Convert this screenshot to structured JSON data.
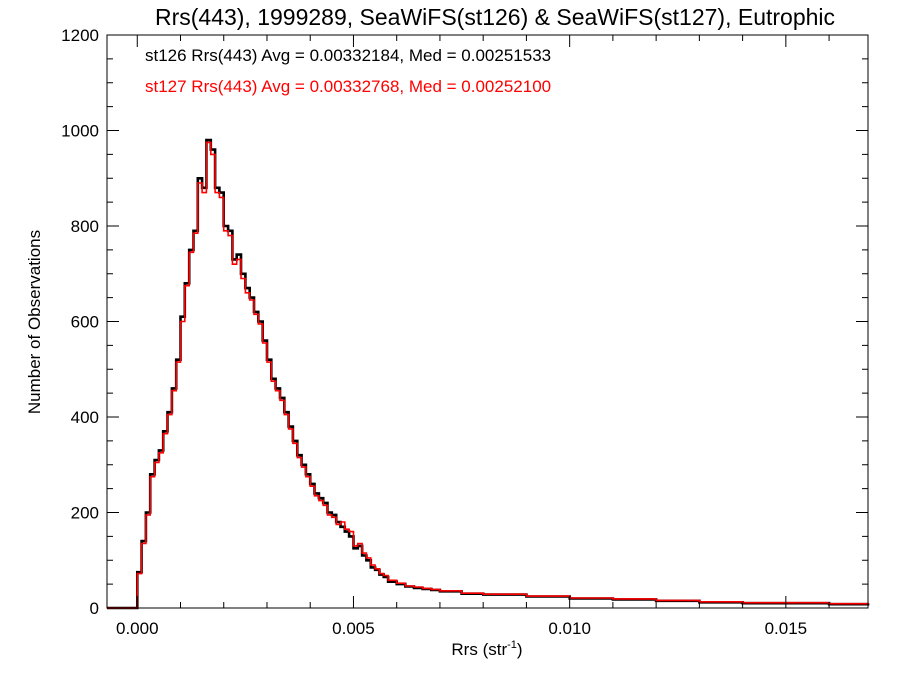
{
  "chart_data": {
    "type": "histogram-step",
    "title": "Rrs(443), 1999289, SeaWiFS(st126) & SeaWiFS(st127), Eutrophic",
    "xlabel_main": "Rrs (str",
    "xlabel_sup": "-1",
    "xlabel_close": ")",
    "ylabel": "Number of Observations",
    "xlim": [
      -0.0007,
      0.0169
    ],
    "ylim": [
      0,
      1200
    ],
    "x_ticks": [
      0.0,
      0.005,
      0.01,
      0.015
    ],
    "x_tick_labels": [
      "0.000",
      "0.005",
      "0.010",
      "0.015"
    ],
    "y_ticks": [
      0,
      200,
      400,
      600,
      800,
      1000,
      1200
    ],
    "y_tick_labels": [
      "0",
      "200",
      "400",
      "600",
      "800",
      "1000",
      "1200"
    ],
    "grid": false,
    "series": [
      {
        "name": "st126",
        "color": "#000000",
        "stats_text": "st126 Rrs(443) Avg = 0.00332184, Med = 0.00251533",
        "x": [
          -0.0007,
          0.0,
          0.0001,
          0.0002,
          0.0003,
          0.0004,
          0.0005,
          0.0006,
          0.0007,
          0.0008,
          0.0009,
          0.001,
          0.0011,
          0.0012,
          0.0013,
          0.0014,
          0.0015,
          0.0016,
          0.0017,
          0.0018,
          0.0019,
          0.002,
          0.0021,
          0.0022,
          0.0023,
          0.0024,
          0.0025,
          0.0026,
          0.0027,
          0.0028,
          0.0029,
          0.003,
          0.0031,
          0.0032,
          0.0033,
          0.0034,
          0.0035,
          0.0036,
          0.0037,
          0.0038,
          0.0039,
          0.004,
          0.0041,
          0.0042,
          0.0043,
          0.0044,
          0.0045,
          0.0046,
          0.0047,
          0.0048,
          0.0049,
          0.005,
          0.0051,
          0.0052,
          0.0053,
          0.0054,
          0.0055,
          0.0056,
          0.0057,
          0.0058,
          0.006,
          0.0062,
          0.0064,
          0.0066,
          0.0068,
          0.007,
          0.0075,
          0.008,
          0.009,
          0.01,
          0.011,
          0.012,
          0.013,
          0.014,
          0.015,
          0.016,
          0.0169
        ],
        "y": [
          0,
          75,
          140,
          200,
          280,
          310,
          330,
          370,
          410,
          460,
          520,
          610,
          680,
          750,
          790,
          900,
          880,
          980,
          960,
          880,
          870,
          800,
          790,
          730,
          740,
          700,
          670,
          650,
          620,
          600,
          560,
          520,
          480,
          460,
          440,
          410,
          380,
          350,
          320,
          300,
          280,
          260,
          240,
          230,
          220,
          200,
          195,
          180,
          170,
          160,
          150,
          125,
          130,
          110,
          100,
          85,
          80,
          70,
          65,
          55,
          50,
          45,
          42,
          40,
          38,
          35,
          30,
          28,
          24,
          20,
          18,
          15,
          12,
          10,
          10,
          8,
          10
        ]
      },
      {
        "name": "st127",
        "color": "#ff0000",
        "stats_text": "st127 Rrs(443) Avg = 0.00332768, Med = 0.00252100",
        "x": [
          -0.0007,
          0.0,
          0.0001,
          0.0002,
          0.0003,
          0.0004,
          0.0005,
          0.0006,
          0.0007,
          0.0008,
          0.0009,
          0.001,
          0.0011,
          0.0012,
          0.0013,
          0.0014,
          0.0015,
          0.0016,
          0.0017,
          0.0018,
          0.0019,
          0.002,
          0.0021,
          0.0022,
          0.0023,
          0.0024,
          0.0025,
          0.0026,
          0.0027,
          0.0028,
          0.0029,
          0.003,
          0.0031,
          0.0032,
          0.0033,
          0.0034,
          0.0035,
          0.0036,
          0.0037,
          0.0038,
          0.0039,
          0.004,
          0.0041,
          0.0042,
          0.0043,
          0.0044,
          0.0045,
          0.0046,
          0.0047,
          0.0048,
          0.0049,
          0.005,
          0.0051,
          0.0052,
          0.0053,
          0.0054,
          0.0055,
          0.0056,
          0.0057,
          0.0058,
          0.006,
          0.0062,
          0.0064,
          0.0066,
          0.0068,
          0.007,
          0.0075,
          0.008,
          0.009,
          0.01,
          0.011,
          0.012,
          0.013,
          0.014,
          0.015,
          0.016,
          0.0169
        ],
        "y": [
          0,
          72,
          135,
          195,
          275,
          305,
          325,
          365,
          405,
          455,
          515,
          600,
          675,
          745,
          785,
          890,
          870,
          975,
          950,
          870,
          860,
          790,
          780,
          720,
          730,
          690,
          660,
          645,
          615,
          595,
          555,
          515,
          475,
          455,
          435,
          405,
          375,
          345,
          315,
          295,
          275,
          255,
          235,
          225,
          215,
          195,
          190,
          175,
          180,
          165,
          160,
          130,
          135,
          115,
          105,
          90,
          82,
          72,
          68,
          58,
          52,
          46,
          44,
          41,
          39,
          36,
          31,
          29,
          25,
          21,
          19,
          16,
          13,
          11,
          11,
          9,
          11
        ]
      }
    ]
  }
}
